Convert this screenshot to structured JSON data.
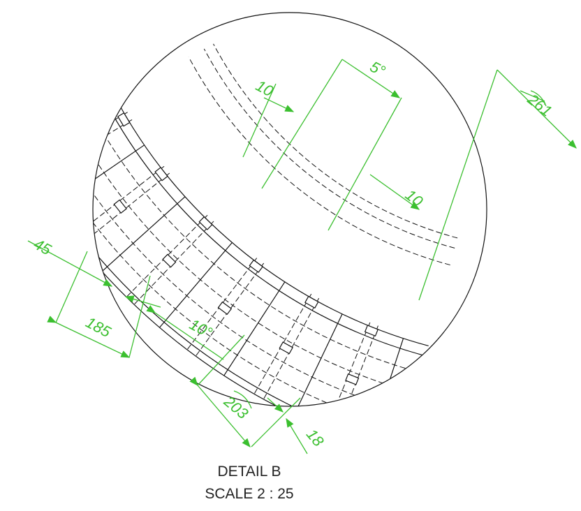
{
  "dimensions": [
    {
      "label": "10"
    },
    {
      "label": "5°"
    },
    {
      "label": "261"
    },
    {
      "label": "10"
    },
    {
      "label": "45"
    },
    {
      "label": "185"
    },
    {
      "label": "10°"
    },
    {
      "label": "203"
    },
    {
      "label": "18"
    }
  ],
  "caption": {
    "title": "DETAIL B",
    "scale": "SCALE 2 : 25"
  }
}
